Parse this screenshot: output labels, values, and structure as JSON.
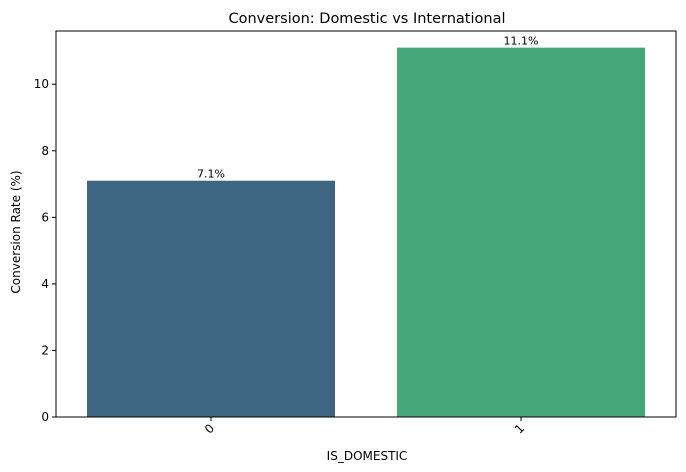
{
  "chart_data": {
    "type": "bar",
    "title": "Conversion: Domestic vs International",
    "xlabel": "IS_DOMESTIC",
    "ylabel": "Conversion Rate (%)",
    "categories": [
      "0",
      "1"
    ],
    "values": [
      7.1,
      11.1
    ],
    "data_labels": [
      "7.1%",
      "11.1%"
    ],
    "colors": [
      "#3e6682",
      "#46a779"
    ],
    "ylim": [
      0,
      11.6
    ],
    "yticks": [
      0,
      2,
      4,
      6,
      8,
      10
    ],
    "ytick_labels": [
      "0",
      "2",
      "4",
      "6",
      "8",
      "10"
    ],
    "grid": false,
    "legend": "none"
  }
}
